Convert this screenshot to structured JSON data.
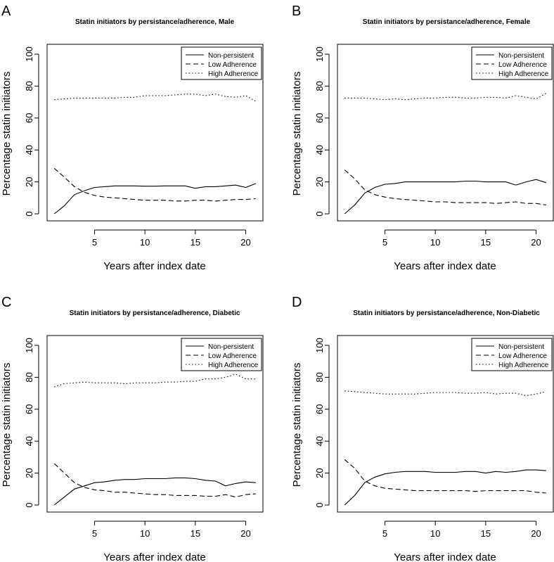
{
  "chart_data": [
    {
      "panel": "A",
      "type": "line",
      "title": "Statin initiators by persistance/adherence, Male",
      "xlabel": "Years after index date",
      "ylabel": "Percentage statin initiators",
      "x": [
        1,
        2,
        3,
        4,
        5,
        6,
        7,
        8,
        9,
        10,
        11,
        12,
        13,
        14,
        15,
        16,
        17,
        18,
        19,
        20,
        21
      ],
      "xticks": [
        5,
        10,
        15,
        20
      ],
      "yticks": [
        0,
        20,
        40,
        60,
        80,
        100
      ],
      "xlim": [
        0.5,
        21.5
      ],
      "ylim": [
        0,
        100
      ],
      "legend_position": "top-right",
      "series": [
        {
          "name": "Non-persistent",
          "style": "solid",
          "values": [
            0,
            5,
            12,
            14.5,
            16.5,
            17,
            17.5,
            17.5,
            17.5,
            17.3,
            17.3,
            17.5,
            17.5,
            17.5,
            16,
            17,
            17,
            17.5,
            18,
            16.5,
            19
          ]
        },
        {
          "name": "Low Adherence",
          "style": "dashed",
          "values": [
            28.5,
            23,
            17,
            13.5,
            11.5,
            10.5,
            10,
            9.5,
            9,
            8.5,
            8.5,
            8.5,
            8,
            8,
            8.5,
            8.5,
            8,
            8.5,
            9,
            9,
            9.5
          ]
        },
        {
          "name": "High Adherence",
          "style": "dotted",
          "values": [
            71.5,
            72,
            72.5,
            72.5,
            72.5,
            72.5,
            72.5,
            73,
            73,
            74,
            74,
            74,
            74.5,
            75,
            75,
            74,
            75,
            73.5,
            73,
            74,
            70.5
          ]
        }
      ]
    },
    {
      "panel": "B",
      "type": "line",
      "title": "Statin initiators by persistance/adherence, Female",
      "xlabel": "Years after index date",
      "ylabel": "Percentage statin initiators",
      "x": [
        1,
        2,
        3,
        4,
        5,
        6,
        7,
        8,
        9,
        10,
        11,
        12,
        13,
        14,
        15,
        16,
        17,
        18,
        19,
        20,
        21
      ],
      "xticks": [
        5,
        10,
        15,
        20
      ],
      "yticks": [
        0,
        20,
        40,
        60,
        80,
        100
      ],
      "xlim": [
        0.5,
        21.5
      ],
      "ylim": [
        0,
        100
      ],
      "legend_position": "top-right",
      "series": [
        {
          "name": "Non-persistent",
          "style": "solid",
          "values": [
            0,
            5.5,
            13,
            16.5,
            18.5,
            19,
            20,
            20,
            20,
            20,
            20,
            20,
            20.5,
            20.5,
            20,
            20,
            20,
            18,
            20,
            21.5,
            19.5
          ]
        },
        {
          "name": "Low Adherence",
          "style": "dashed",
          "values": [
            27.5,
            22,
            15,
            12,
            10.5,
            9.5,
            9,
            8.5,
            8,
            7.5,
            7.5,
            7,
            7,
            7,
            7,
            6.5,
            7,
            7.5,
            6.5,
            6.5,
            5.5
          ]
        },
        {
          "name": "High Adherence",
          "style": "dotted",
          "values": [
            72.5,
            72.5,
            72.5,
            72,
            71.5,
            72,
            71.5,
            72,
            72.5,
            72.5,
            73,
            73,
            72.5,
            72.5,
            73,
            73,
            72.5,
            74,
            73,
            72,
            75.5
          ]
        }
      ]
    },
    {
      "panel": "C",
      "type": "line",
      "title": "Statin initiators by persistance/adherence, Diabetic",
      "xlabel": "Years after index date",
      "ylabel": "Percentage statin initiators",
      "x": [
        1,
        2,
        3,
        4,
        5,
        6,
        7,
        8,
        9,
        10,
        11,
        12,
        13,
        14,
        15,
        16,
        17,
        18,
        19,
        20,
        21
      ],
      "xticks": [
        5,
        10,
        15,
        20
      ],
      "yticks": [
        0,
        20,
        40,
        60,
        80,
        100
      ],
      "xlim": [
        0.5,
        21.5
      ],
      "ylim": [
        0,
        100
      ],
      "legend_position": "top-right",
      "series": [
        {
          "name": "Non-persistent",
          "style": "solid",
          "values": [
            0,
            5,
            10,
            12,
            14,
            14.5,
            15.5,
            16,
            16,
            16.5,
            16.5,
            16.5,
            17,
            17,
            16.5,
            15.5,
            15,
            12,
            13.5,
            14.5,
            14
          ]
        },
        {
          "name": "Low Adherence",
          "style": "dashed",
          "values": [
            26,
            20,
            14,
            11,
            9.5,
            9,
            8,
            8,
            7.5,
            7,
            6.5,
            6.5,
            6,
            6,
            6,
            5.5,
            5.5,
            6.5,
            5,
            6.5,
            7
          ]
        },
        {
          "name": "High Adherence",
          "style": "dotted",
          "values": [
            74,
            76,
            76.5,
            77,
            76.5,
            76.5,
            76.5,
            76,
            76.5,
            76.5,
            76.5,
            77,
            77,
            77.5,
            77.5,
            79,
            79,
            80,
            82,
            79,
            79
          ]
        }
      ]
    },
    {
      "panel": "D",
      "type": "line",
      "title": "Statin initiators by persistance/adherence, Non-Diabetic",
      "xlabel": "Years after index date",
      "ylabel": "Percentage statin initiators",
      "x": [
        1,
        2,
        3,
        4,
        5,
        6,
        7,
        8,
        9,
        10,
        11,
        12,
        13,
        14,
        15,
        16,
        17,
        18,
        19,
        20,
        21
      ],
      "xticks": [
        5,
        10,
        15,
        20
      ],
      "yticks": [
        0,
        20,
        40,
        60,
        80,
        100
      ],
      "xlim": [
        0.5,
        21.5
      ],
      "ylim": [
        0,
        100
      ],
      "legend_position": "top-right",
      "series": [
        {
          "name": "Non-persistent",
          "style": "solid",
          "values": [
            0,
            6,
            14,
            17.5,
            19.5,
            20.5,
            21,
            21,
            21,
            20.5,
            20.5,
            20.5,
            21,
            21,
            20,
            21,
            20.5,
            21,
            22,
            22,
            21.5
          ]
        },
        {
          "name": "Low Adherence",
          "style": "dashed",
          "values": [
            28.5,
            23,
            15,
            12,
            10.5,
            10,
            9.5,
            9,
            9,
            9,
            9,
            9,
            9,
            8.5,
            9,
            9,
            9,
            9,
            9,
            8,
            7.5
          ]
        },
        {
          "name": "High Adherence",
          "style": "dotted",
          "values": [
            71.5,
            71,
            70.5,
            70,
            69.5,
            69.5,
            69.5,
            69.5,
            70,
            70.5,
            70.5,
            70.5,
            70,
            70,
            70.5,
            69.5,
            70,
            70,
            68.5,
            69.5,
            71
          ]
        }
      ]
    }
  ]
}
